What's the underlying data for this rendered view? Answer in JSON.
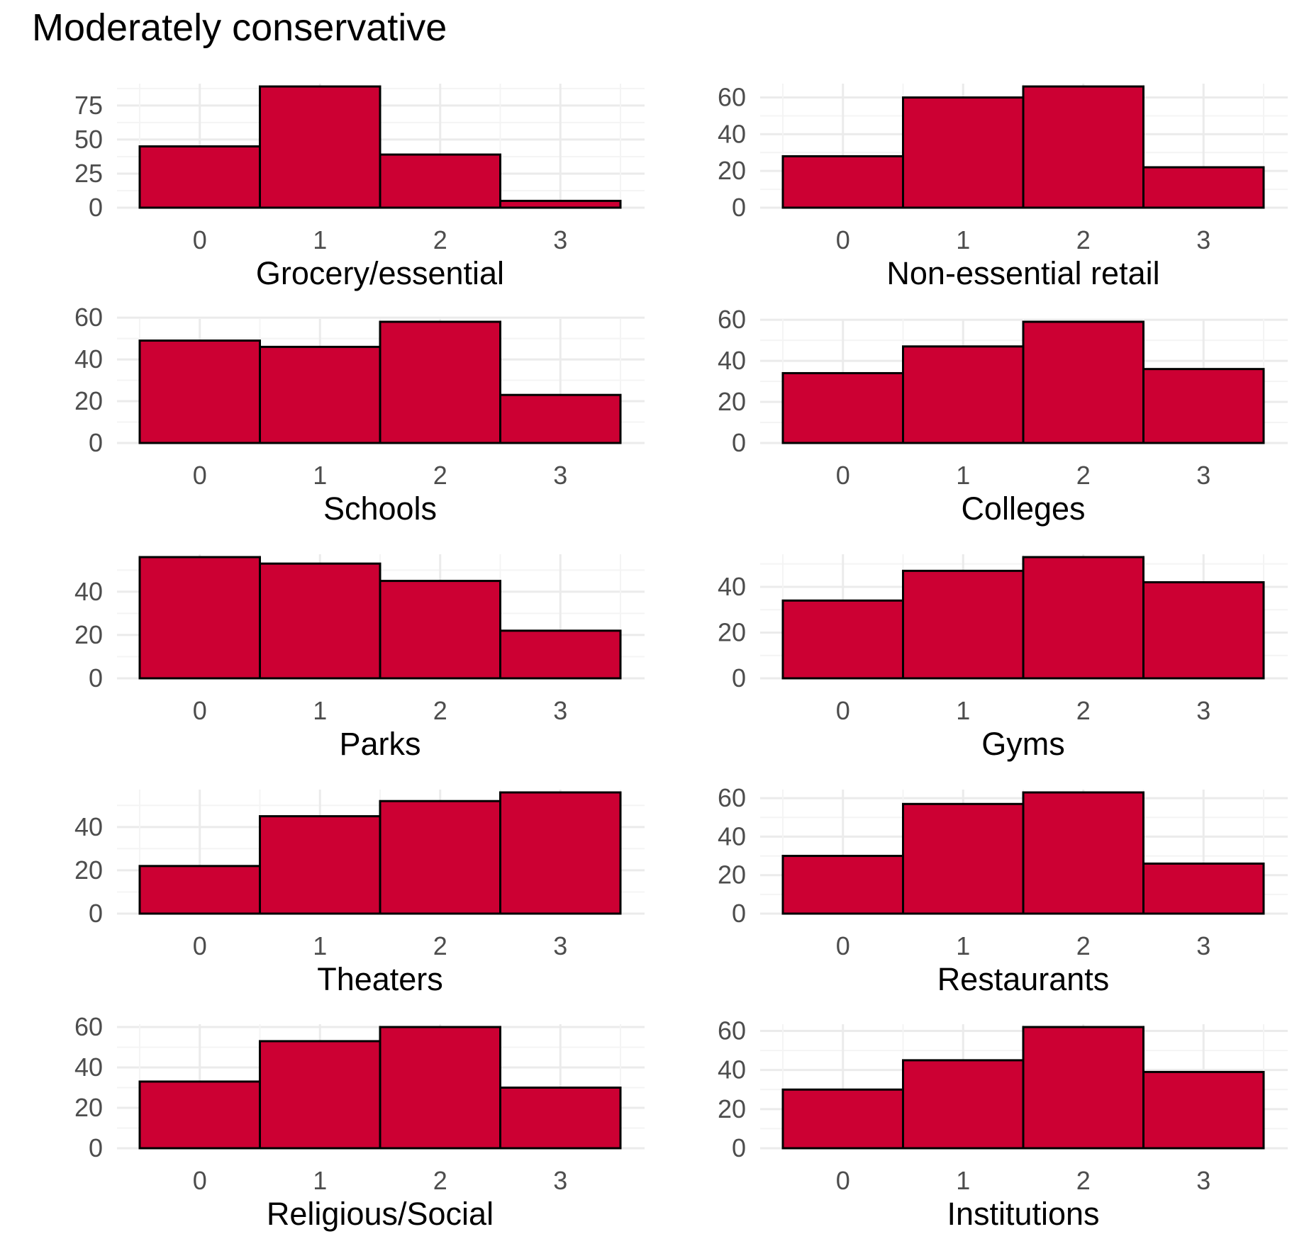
{
  "title": "Moderately conservative",
  "chart_data": [
    {
      "type": "bar",
      "xlabel": "Grocery/essential",
      "categories": [
        "0",
        "1",
        "2",
        "3"
      ],
      "values": [
        45,
        89,
        39,
        5
      ],
      "ylim": [
        0,
        89
      ],
      "yticks": [
        0,
        25,
        50,
        75
      ],
      "grid": true
    },
    {
      "type": "bar",
      "xlabel": "Non-essential retail",
      "categories": [
        "0",
        "1",
        "2",
        "3"
      ],
      "values": [
        28,
        60,
        66,
        22
      ],
      "ylim": [
        0,
        66
      ],
      "yticks": [
        0,
        20,
        40,
        60
      ],
      "grid": true
    },
    {
      "type": "bar",
      "xlabel": "Schools",
      "categories": [
        "0",
        "1",
        "2",
        "3"
      ],
      "values": [
        49,
        46,
        58,
        23
      ],
      "ylim": [
        0,
        58
      ],
      "yticks": [
        0,
        20,
        40,
        60
      ],
      "grid": true
    },
    {
      "type": "bar",
      "xlabel": "Colleges",
      "categories": [
        "0",
        "1",
        "2",
        "3"
      ],
      "values": [
        34,
        47,
        59,
        36
      ],
      "ylim": [
        0,
        59
      ],
      "yticks": [
        0,
        20,
        40,
        60
      ],
      "grid": true
    },
    {
      "type": "bar",
      "xlabel": "Parks",
      "categories": [
        "0",
        "1",
        "2",
        "3"
      ],
      "values": [
        56,
        53,
        45,
        22
      ],
      "ylim": [
        0,
        56
      ],
      "yticks": [
        0,
        20,
        40
      ],
      "grid": true
    },
    {
      "type": "bar",
      "xlabel": "Gyms",
      "categories": [
        "0",
        "1",
        "2",
        "3"
      ],
      "values": [
        34,
        47,
        53,
        42
      ],
      "ylim": [
        0,
        53
      ],
      "yticks": [
        0,
        20,
        40
      ],
      "grid": true
    },
    {
      "type": "bar",
      "xlabel": "Theaters",
      "categories": [
        "0",
        "1",
        "2",
        "3"
      ],
      "values": [
        22,
        45,
        52,
        56
      ],
      "ylim": [
        0,
        56
      ],
      "yticks": [
        0,
        20,
        40
      ],
      "grid": true
    },
    {
      "type": "bar",
      "xlabel": "Restaurants",
      "categories": [
        "0",
        "1",
        "2",
        "3"
      ],
      "values": [
        30,
        57,
        63,
        26
      ],
      "ylim": [
        0,
        63
      ],
      "yticks": [
        0,
        20,
        40,
        60
      ],
      "grid": true
    },
    {
      "type": "bar",
      "xlabel": "Religious/Social",
      "categories": [
        "0",
        "1",
        "2",
        "3"
      ],
      "values": [
        33,
        53,
        60,
        30
      ],
      "ylim": [
        0,
        60
      ],
      "yticks": [
        0,
        20,
        40,
        60
      ],
      "grid": true
    },
    {
      "type": "bar",
      "xlabel": "Institutions",
      "categories": [
        "0",
        "1",
        "2",
        "3"
      ],
      "values": [
        30,
        45,
        62,
        39
      ],
      "ylim": [
        0,
        62
      ],
      "yticks": [
        0,
        20,
        40,
        60
      ],
      "grid": true
    }
  ],
  "colors": {
    "bar_fill": "#cc0033",
    "bar_stroke": "#000000",
    "grid_major": "#ebebeb",
    "grid_minor": "#f4f4f4",
    "tick_text": "#4d4d4d"
  }
}
